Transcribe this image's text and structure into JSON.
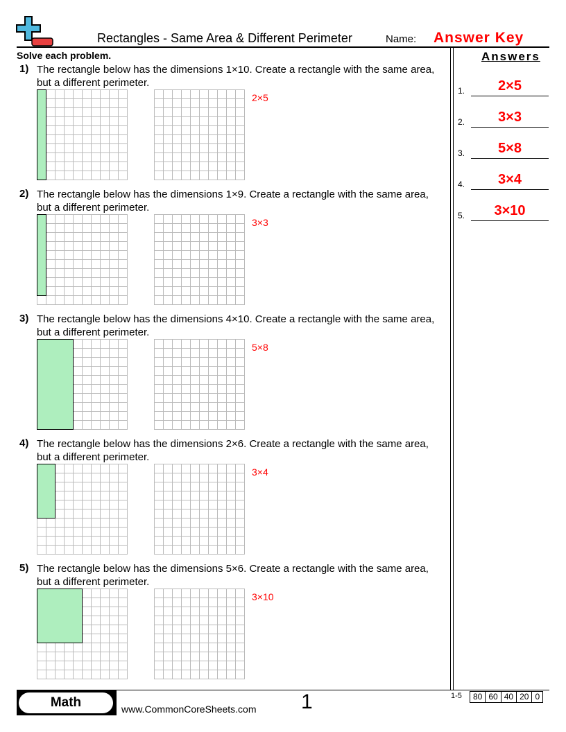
{
  "header": {
    "title": "Rectangles - Same Area & Different Perimeter",
    "name_label": "Name:",
    "answer_key": "Answer Key",
    "logo": "plus-minus-logo-icon"
  },
  "instructions": "Solve each problem.",
  "problems": [
    {
      "num": "1)",
      "text": "The rectangle below has the dimensions 1×10. Create a rectangle with the same area, but a different perimeter.",
      "width": 1,
      "height": 10,
      "hint": "2×5"
    },
    {
      "num": "2)",
      "text": "The rectangle below has the dimensions 1×9. Create a rectangle with the same area, but a different perimeter.",
      "width": 1,
      "height": 9,
      "hint": "3×3"
    },
    {
      "num": "3)",
      "text": "The rectangle below has the dimensions 4×10. Create a rectangle with the same area, but a different perimeter.",
      "width": 4,
      "height": 10,
      "hint": "5×8"
    },
    {
      "num": "4)",
      "text": "The rectangle below has the dimensions 2×6. Create a rectangle with the same area, but a different perimeter.",
      "width": 2,
      "height": 6,
      "hint": "3×4"
    },
    {
      "num": "5)",
      "text": "The rectangle below has the dimensions 5×6. Create a rectangle with the same area, but a different perimeter.",
      "width": 5,
      "height": 6,
      "hint": "3×10"
    }
  ],
  "answers": {
    "heading": "Answers",
    "items": [
      {
        "num": "1.",
        "value": "2×5"
      },
      {
        "num": "2.",
        "value": "3×3"
      },
      {
        "num": "3.",
        "value": "5×8"
      },
      {
        "num": "4.",
        "value": "3×4"
      },
      {
        "num": "5.",
        "value": "3×10"
      }
    ]
  },
  "footer": {
    "subject": "Math",
    "site": "www.CommonCoreSheets.com",
    "page": "1",
    "score_label": "1-5",
    "scores": [
      "80",
      "60",
      "40",
      "20",
      "0"
    ]
  },
  "colors": {
    "accent": "#ff0000",
    "rect_fill": "#aeeebe",
    "logo_plus": "#4fb8de",
    "logo_minus": "#e84040"
  }
}
